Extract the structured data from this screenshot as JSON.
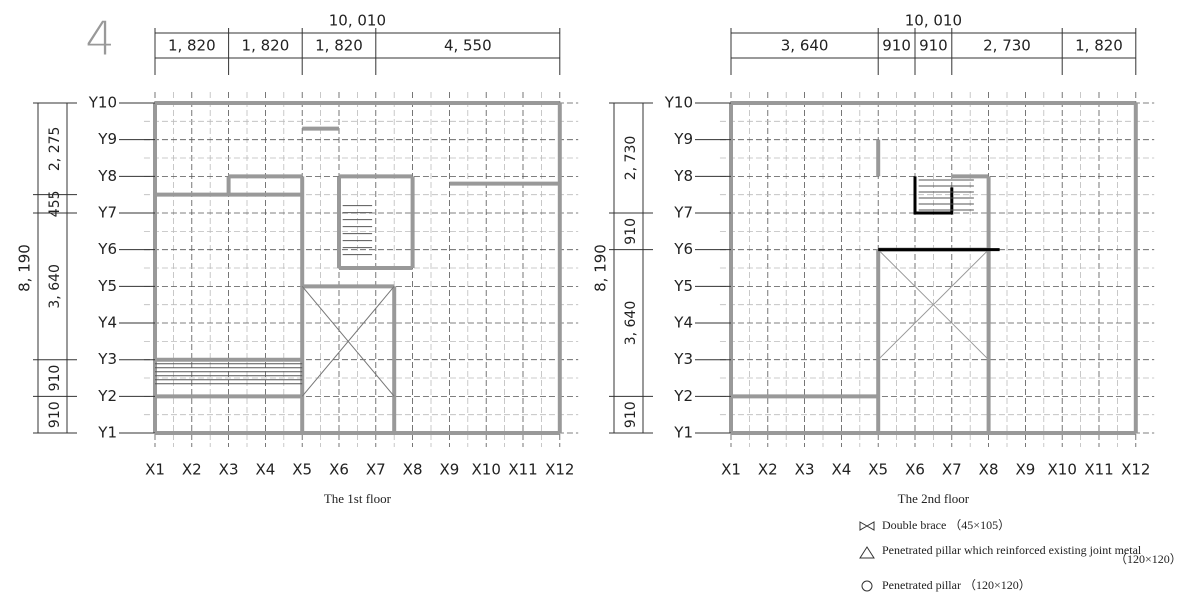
{
  "figure_number": "4",
  "plans": [
    {
      "title": "The 1st floor",
      "top_total": "10, 010",
      "top_dims": [
        "1, 820",
        "1, 820",
        "1, 820",
        "4, 550"
      ],
      "left_total": "8, 190",
      "left_dims": [
        "2, 275",
        "455",
        "3, 640",
        "910",
        "910"
      ],
      "x_labels": [
        "X1",
        "X2",
        "X3",
        "X4",
        "X5",
        "X6",
        "X7",
        "X8",
        "X9",
        "X10",
        "X11",
        "X12"
      ],
      "y_labels": [
        "Y1",
        "Y2",
        "Y3",
        "Y4",
        "Y5",
        "Y6",
        "Y7",
        "Y8",
        "Y9",
        "Y10"
      ]
    },
    {
      "title": "The 2nd floor",
      "top_total": "10, 010",
      "top_dims": [
        "3, 640",
        "910",
        "910",
        "2, 730",
        "1, 820"
      ],
      "left_total": "8, 190",
      "left_dims": [
        "2, 730",
        "910",
        "3, 640",
        "910"
      ],
      "x_labels": [
        "X1",
        "X2",
        "X3",
        "X4",
        "X5",
        "X6",
        "X7",
        "X8",
        "X9",
        "X10",
        "X11",
        "X12"
      ],
      "y_labels": [
        "Y1",
        "Y2",
        "Y3",
        "Y4",
        "Y5",
        "Y6",
        "Y7",
        "Y8",
        "Y9",
        "Y10"
      ]
    }
  ],
  "legend": {
    "double_brace": "Double brace （45×105）",
    "reinforced_pillar": "Penetrated pillar which reinforced existing joint metal",
    "reinforced_size": "（120×120）",
    "penetrated_pillar": "Penetrated pillar （120×120）"
  }
}
